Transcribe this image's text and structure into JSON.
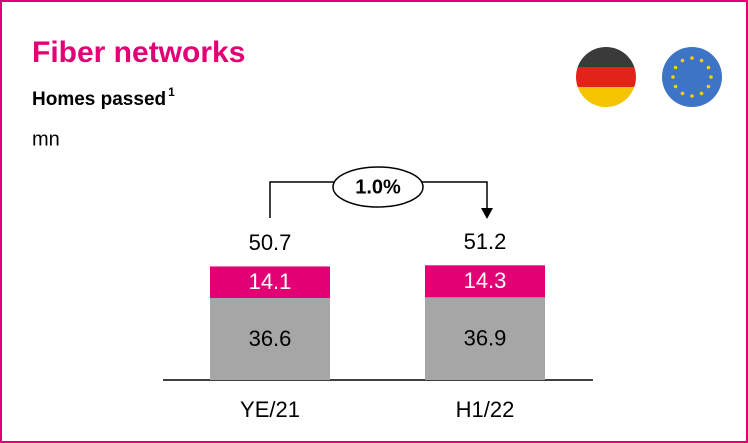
{
  "chart_data": {
    "type": "stacked_bar",
    "title": "Fiber networks",
    "subtitle": "Homes passed",
    "footnote_mark": "1",
    "unit": "mn",
    "annotation": "1.0%",
    "categories": [
      "YE/21",
      "H1/22"
    ],
    "series": [
      {
        "color": "#a6a6a6",
        "values": [
          36.6,
          36.9
        ]
      },
      {
        "color": "#e20074",
        "values": [
          14.1,
          14.3
        ]
      }
    ],
    "totals": [
      50.7,
      51.2
    ]
  }
}
